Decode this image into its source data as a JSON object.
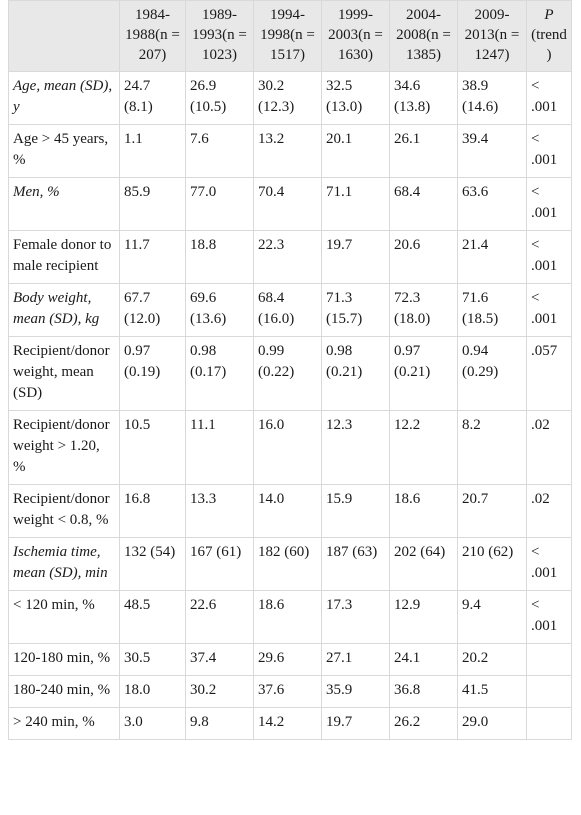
{
  "table": {
    "headers": [
      "",
      "1984-1988(n = 207)",
      "1989-1993(n = 1023)",
      "1994-1998(n = 1517)",
      "1999-2003(n = 1630)",
      "2004-2008(n = 1385)",
      "2009-2013(n = 1247)",
      "P (trend)"
    ],
    "rows": [
      {
        "label": "Age, mean (SD), y",
        "italic": true,
        "cells": [
          "24.7 (8.1)",
          "26.9 (10.5)",
          "30.2 (12.3)",
          "32.5 (13.0)",
          "34.6 (13.8)",
          "38.9 (14.6)",
          "< .001"
        ]
      },
      {
        "label": " Age > 45 years, %",
        "italic": false,
        "cells": [
          "1.1",
          "7.6",
          "13.2",
          "20.1",
          "26.1",
          "39.4",
          "< .001"
        ]
      },
      {
        "label": "Men, %",
        "italic": true,
        "cells": [
          "85.9",
          "77.0",
          "70.4",
          "71.1",
          "68.4",
          "63.6",
          "< .001"
        ]
      },
      {
        "label": " Female donor to male recipient",
        "italic": false,
        "cells": [
          "11.7",
          "18.8",
          "22.3",
          "19.7",
          "20.6",
          "21.4",
          "< .001"
        ]
      },
      {
        "label": "Body weight, mean (SD), kg",
        "italic": true,
        "cells": [
          "67.7 (12.0)",
          "69.6 (13.6)",
          "68.4 (16.0)",
          "71.3 (15.7)",
          "72.3 (18.0)",
          "71.6 (18.5)",
          "< .001"
        ]
      },
      {
        "label": "Recipient/donor weight, mean (SD)",
        "italic": false,
        "cells": [
          "0.97 (0.19)",
          "0.98 (0.17)",
          "0.99 (0.22)",
          "0.98 (0.21)",
          "0.97 (0.21)",
          "0.94 (0.29)",
          ".057"
        ]
      },
      {
        "label": "Recipient/donor weight > 1.20, %",
        "italic": false,
        "cells": [
          "10.5",
          "11.1",
          "16.0",
          "12.3",
          "12.2",
          "8.2",
          ".02"
        ]
      },
      {
        "label": "Recipient/donor weight < 0.8, %",
        "italic": false,
        "cells": [
          "16.8",
          "13.3",
          "14.0",
          "15.9",
          "18.6",
          "20.7",
          ".02"
        ]
      },
      {
        "label": "Ischemia time, mean (SD), min",
        "italic": true,
        "cells": [
          "132 (54)",
          "167 (61)",
          "182 (60)",
          "187 (63)",
          "202 (64)",
          "210 (62)",
          "< .001"
        ]
      },
      {
        "label": " < 120 min, %",
        "italic": false,
        "cells": [
          "48.5",
          "22.6",
          "18.6",
          "17.3",
          "12.9",
          "9.4",
          "< .001"
        ]
      },
      {
        "label": " 120-180 min, %",
        "italic": false,
        "cells": [
          "30.5",
          "37.4",
          "29.6",
          "27.1",
          "24.1",
          "20.2",
          ""
        ]
      },
      {
        "label": " 180-240 min, %",
        "italic": false,
        "cells": [
          "18.0",
          "30.2",
          "37.6",
          "35.9",
          "36.8",
          "41.5",
          ""
        ]
      },
      {
        "label": " > 240 min, %",
        "italic": false,
        "cells": [
          "3.0",
          "9.8",
          "14.2",
          "19.7",
          "26.2",
          "29.0",
          ""
        ]
      }
    ]
  }
}
